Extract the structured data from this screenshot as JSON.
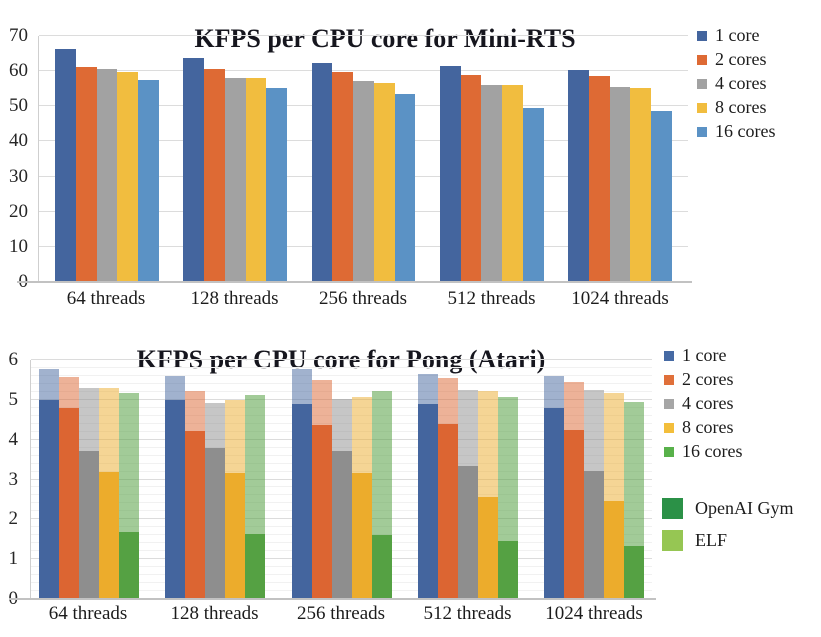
{
  "page": {
    "background": "#ffffff"
  },
  "chart_data": [
    {
      "type": "bar",
      "title": "KFPS per CPU core for Mini-RTS",
      "categories": [
        "64 threads",
        "128 threads",
        "256 threads",
        "512 threads",
        "1024 threads"
      ],
      "series": [
        {
          "name": "1 core",
          "color": "#44659E",
          "values": [
            66.2,
            63.7,
            62.3,
            61.4,
            60.3
          ]
        },
        {
          "name": "2 cores",
          "color": "#DE6A34",
          "values": [
            61.3,
            60.6,
            59.9,
            59.0,
            58.6
          ]
        },
        {
          "name": "4 cores",
          "color": "#A2A2A2",
          "values": [
            60.6,
            58.1,
            57.2,
            56.2,
            55.5
          ]
        },
        {
          "name": "8 cores",
          "color": "#F1BD3F",
          "values": [
            59.9,
            58.1,
            56.7,
            56.1,
            55.1
          ]
        },
        {
          "name": "16 cores",
          "color": "#5B92C5",
          "values": [
            57.5,
            55.2,
            53.5,
            49.5,
            48.8
          ]
        }
      ],
      "ylim": [
        0,
        70
      ],
      "yticks": [
        "70",
        "60",
        "50",
        "40",
        "30",
        "20",
        "10",
        "0"
      ],
      "grid": "horizontal-major",
      "legend_position": "right"
    },
    {
      "type": "grouped-overlay-bar",
      "title": "KFPS per CPU core for Pong (Atari)",
      "categories": [
        "64 threads",
        "128 threads",
        "256 threads",
        "512 threads",
        "1024 threads"
      ],
      "overlay_note": "Each core-count slot shows two overlapping bars: lighter taller bar = ELF, darker front bar = OpenAI Gym",
      "series": [
        {
          "name": "1 core",
          "legend_color": "#466AA4",
          "openai_gym_color": "#44659E",
          "elf_color": "rgba(68,101,158,0.5)",
          "openai_gym": [
            5.0,
            5.0,
            4.89,
            4.89,
            4.79
          ],
          "elf": [
            5.78,
            5.6,
            5.78,
            5.65,
            5.6
          ]
        },
        {
          "name": "2 cores",
          "legend_color": "#E0703A",
          "openai_gym_color": "#DC6532",
          "elf_color": "rgba(220,101,50,0.5)",
          "openai_gym": [
            4.8,
            4.21,
            4.37,
            4.39,
            4.25
          ],
          "elf": [
            5.57,
            5.21,
            5.5,
            5.55,
            5.46
          ]
        },
        {
          "name": "4 cores",
          "legend_color": "#A6A6A6",
          "openai_gym_color": "#8E8E8E",
          "elf_color": "rgba(142,142,142,0.5)",
          "openai_gym": [
            3.71,
            3.8,
            3.72,
            3.33,
            3.22
          ],
          "elf": [
            5.3,
            4.91,
            5.01,
            5.25,
            5.25
          ]
        },
        {
          "name": "8 cores",
          "legend_color": "#F3BE3B",
          "openai_gym_color": "#ECAC2C",
          "elf_color": "rgba(236,172,44,0.5)",
          "openai_gym": [
            3.18,
            3.16,
            3.16,
            2.55,
            2.45
          ],
          "elf": [
            5.31,
            5.0,
            5.07,
            5.21,
            5.18
          ]
        },
        {
          "name": "16 cores",
          "legend_color": "#58B14A",
          "openai_gym_color": "#55A143",
          "elf_color": "rgba(85,161,67,0.55)",
          "openai_gym": [
            1.67,
            1.63,
            1.6,
            1.45,
            1.33
          ],
          "elf": [
            5.16,
            5.11,
            5.23,
            5.08,
            4.94
          ]
        }
      ],
      "ylim": [
        0,
        6
      ],
      "yticks": [
        "6",
        "5",
        "4",
        "3",
        "2",
        "1",
        "0"
      ],
      "minor_step": 0.2,
      "grid": "horizontal-major-minor",
      "legend_position": "right",
      "impl_legend": [
        {
          "label": "OpenAI Gym",
          "color": "#2B9147"
        },
        {
          "label": "ELF",
          "color": "#96C653"
        }
      ]
    }
  ]
}
